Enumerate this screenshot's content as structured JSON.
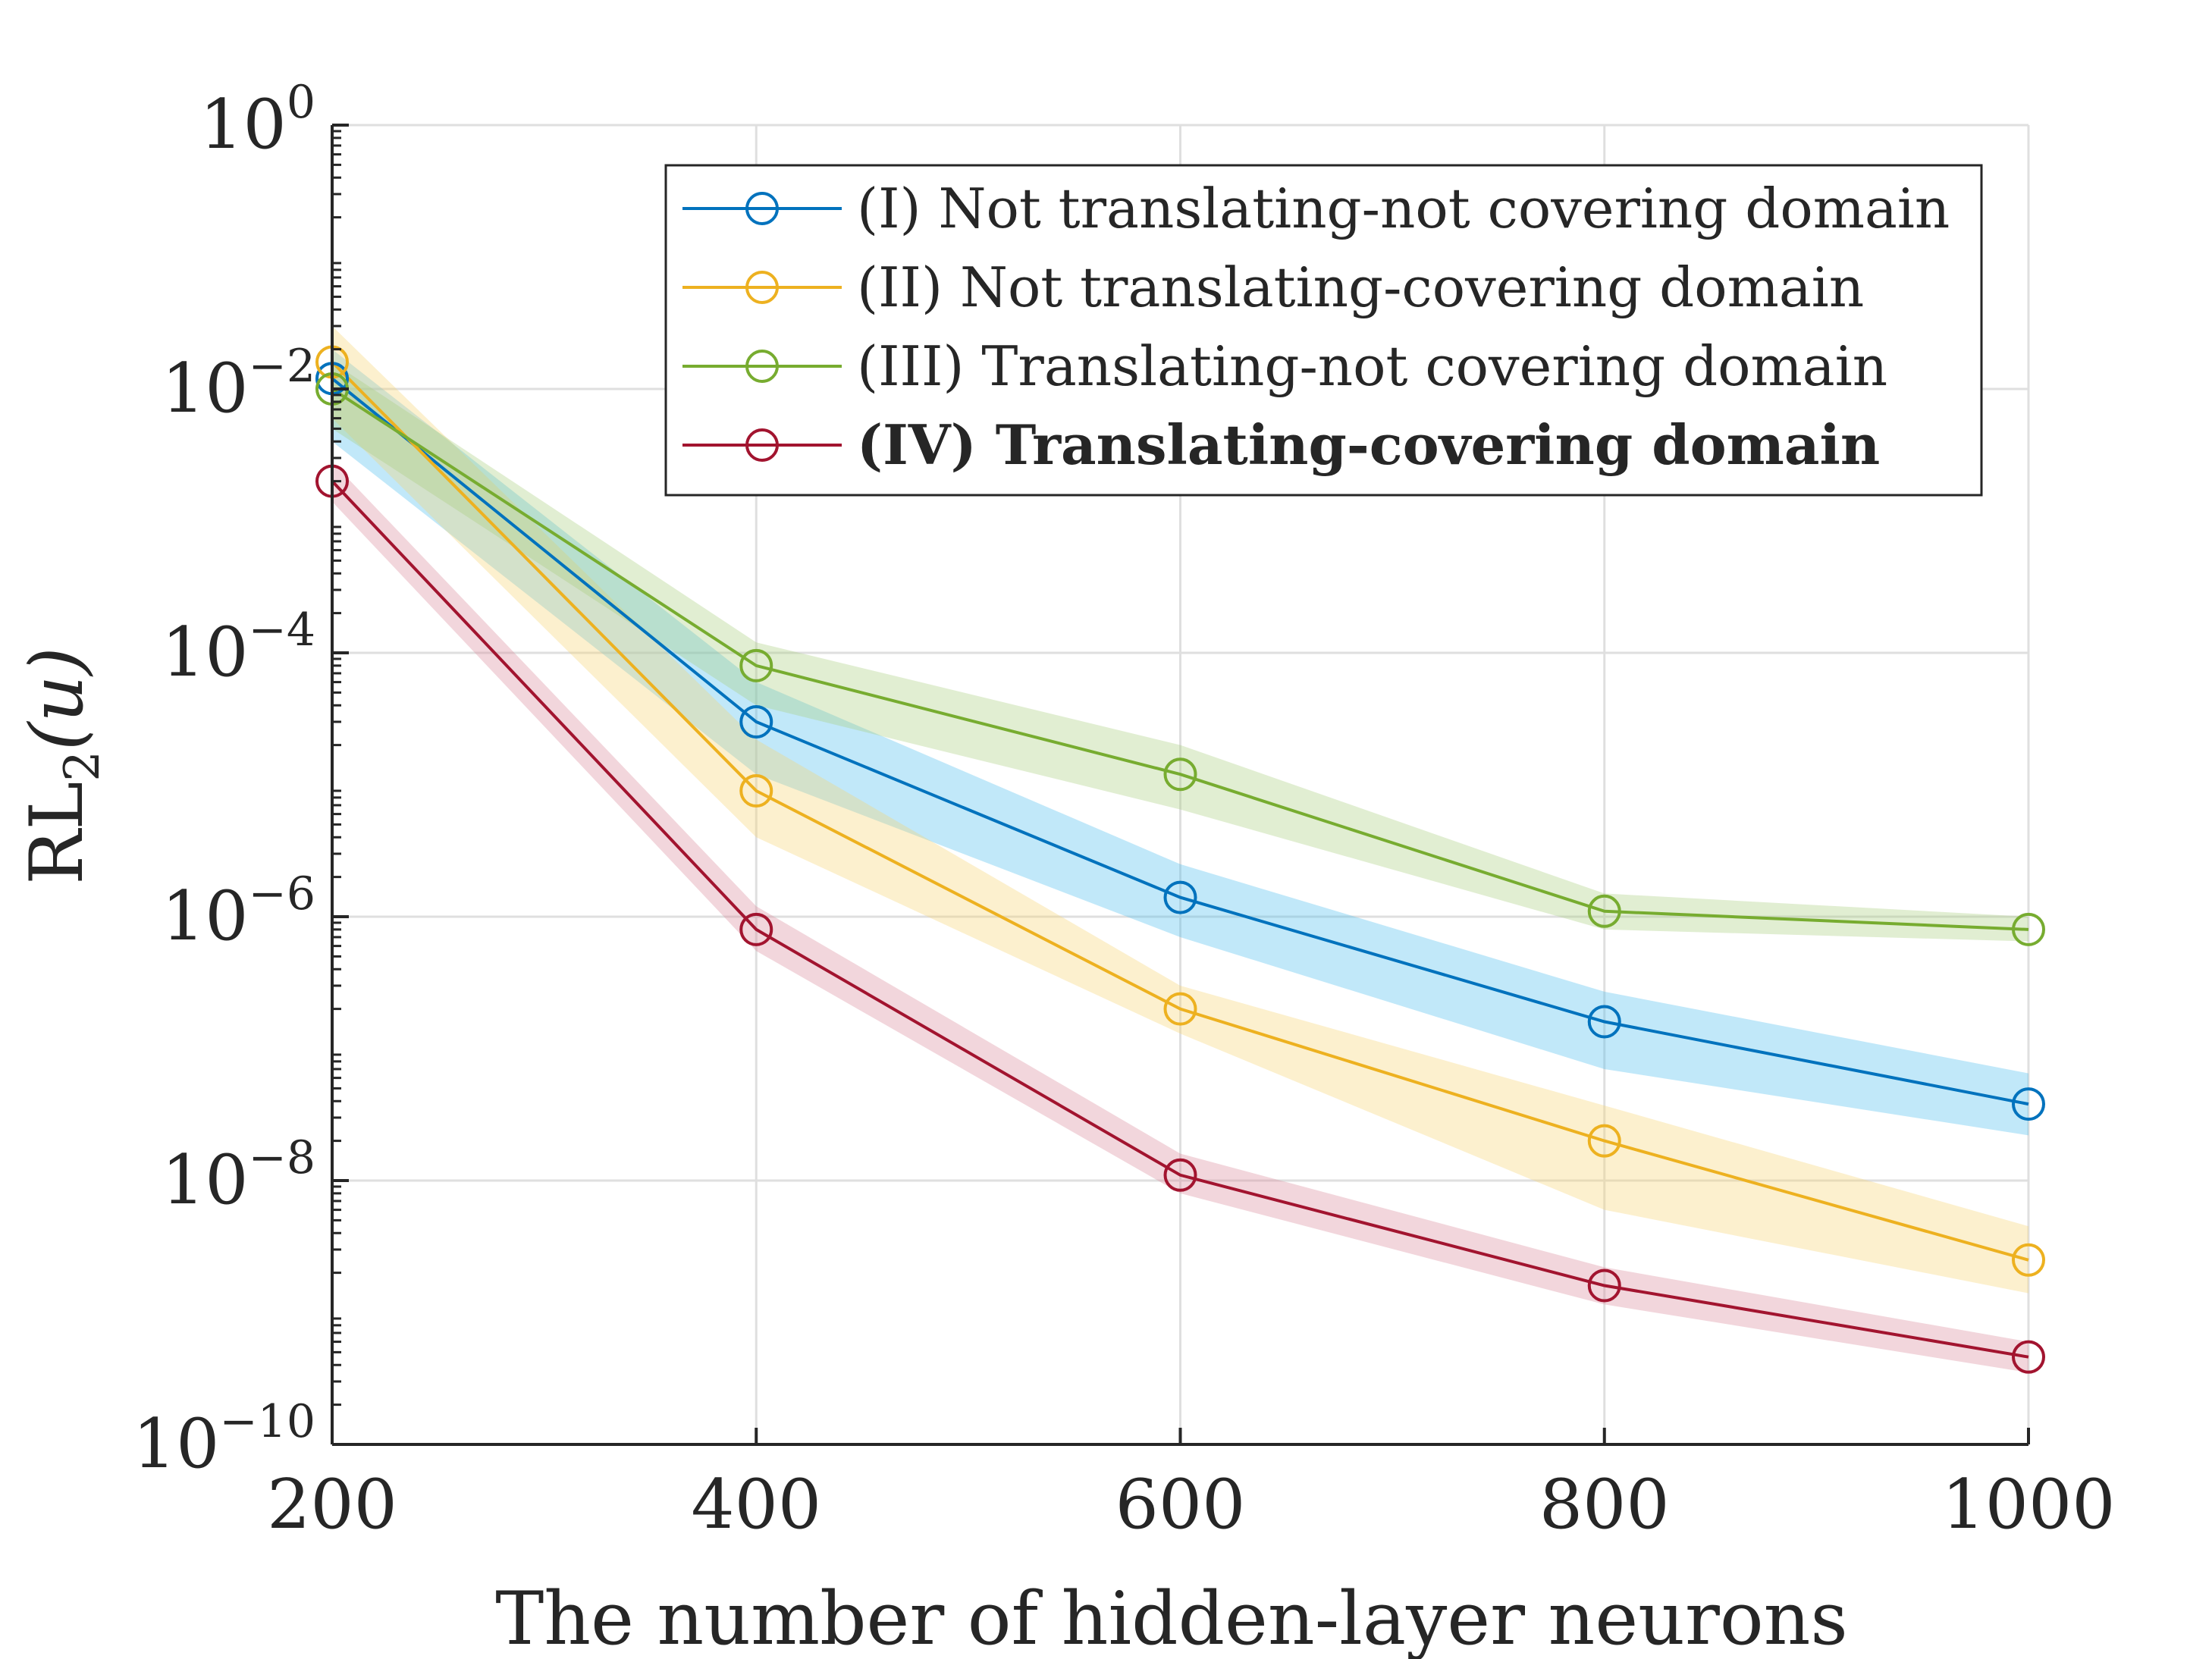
{
  "chart_data": {
    "type": "line",
    "title": "",
    "xlabel": "The number of hidden-layer neurons",
    "ylabel": {
      "base": "RL",
      "sub": "2",
      "arg": "(u)"
    },
    "x": [
      200,
      400,
      600,
      800,
      1000
    ],
    "xlim": [
      200,
      1000
    ],
    "ylim": [
      1e-10,
      1
    ],
    "yscale": "log",
    "grid": true,
    "legend_position": "top-right",
    "xticks": [
      "200",
      "400",
      "600",
      "800",
      "1000"
    ],
    "yticks": [
      {
        "base": "10",
        "exp": "0",
        "value": 1
      },
      {
        "base": "10",
        "exp": "−2",
        "value": 0.01
      },
      {
        "base": "10",
        "exp": "−4",
        "value": 0.0001
      },
      {
        "base": "10",
        "exp": "−6",
        "value": 1e-06
      },
      {
        "base": "10",
        "exp": "−8",
        "value": 1e-08
      },
      {
        "base": "10",
        "exp": "−10",
        "value": 1e-10
      }
    ],
    "series": [
      {
        "name": "(I) Not translating-not covering domain",
        "color": "#0072BD",
        "band_color": "#4DBEEE",
        "bold": false,
        "values": [
          0.012,
          3e-05,
          1.4e-06,
          1.6e-07,
          3.8e-08
        ],
        "lower": [
          0.004,
          1.2e-05,
          7e-07,
          7e-08,
          2.2e-08
        ],
        "upper": [
          0.02,
          6e-05,
          2.5e-06,
          2.7e-07,
          6.5e-08
        ]
      },
      {
        "name": "(II) Not translating-covering domain",
        "color": "#EDB120",
        "band_color": "#F5D372",
        "bold": false,
        "values": [
          0.016,
          9e-06,
          2e-07,
          2e-08,
          2.5e-09
        ],
        "lower": [
          0.006,
          4e-06,
          1.3e-07,
          6e-09,
          1.4e-09
        ],
        "upper": [
          0.03,
          2.2e-05,
          3e-07,
          3.7e-08,
          4.5e-09
        ]
      },
      {
        "name": "(III) Translating-not covering domain",
        "color": "#77AC30",
        "band_color": "#A9CD7E",
        "bold": false,
        "values": [
          0.01,
          8e-05,
          1.2e-05,
          1.1e-06,
          8e-07
        ],
        "lower": [
          0.005,
          4e-05,
          6.5e-06,
          8e-07,
          6.5e-07
        ],
        "upper": [
          0.016,
          0.00012,
          2e-05,
          1.5e-06,
          1e-06
        ]
      },
      {
        "name": "(IV) Translating-covering domain",
        "color": "#A2142F",
        "band_color": "#D98A9B",
        "bold": true,
        "values": [
          0.002,
          8e-07,
          1.1e-08,
          1.6e-09,
          4.6e-10
        ],
        "lower": [
          0.0014,
          5.5e-07,
          8e-09,
          1.15e-09,
          3.5e-10
        ],
        "upper": [
          0.0028,
          1.2e-06,
          1.6e-08,
          2.2e-09,
          6e-10
        ]
      }
    ]
  }
}
